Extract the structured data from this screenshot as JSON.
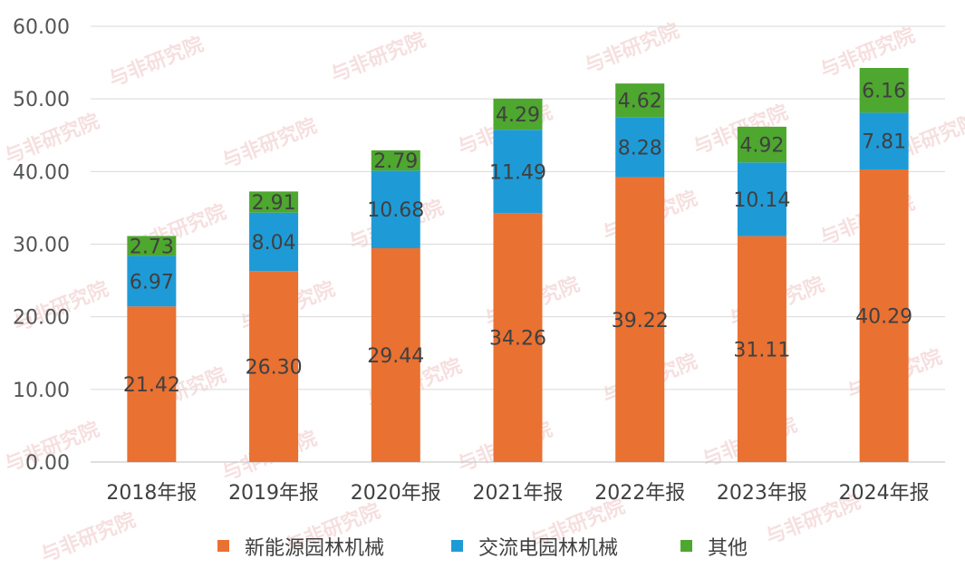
{
  "chart_data": {
    "type": "bar",
    "stacked": true,
    "categories": [
      "2018年报",
      "2019年报",
      "2020年报",
      "2021年报",
      "2022年报",
      "2023年报",
      "2024年报"
    ],
    "series": [
      {
        "name": "新能源园林机械",
        "color": "#E97132",
        "values": [
          21.42,
          26.3,
          29.44,
          34.26,
          39.22,
          31.11,
          40.29
        ],
        "labels": [
          "21.42",
          "26.30",
          "29.44",
          "34.26",
          "39.22",
          "31.11",
          "40.29"
        ]
      },
      {
        "name": "交流电园林机械",
        "color": "#1E9BD7",
        "values": [
          6.97,
          8.04,
          10.68,
          11.49,
          8.28,
          10.14,
          7.81
        ],
        "labels": [
          "6.97",
          "8.04",
          "10.68",
          "11.49",
          "8.28",
          "10.14",
          "7.81"
        ]
      },
      {
        "name": "其他",
        "color": "#4EA72E",
        "values": [
          2.73,
          2.91,
          2.79,
          4.29,
          4.62,
          4.92,
          6.16
        ],
        "labels": [
          "2.73",
          "2.91",
          "2.79",
          "4.29",
          "4.62",
          "4.92",
          "6.16"
        ]
      }
    ],
    "ylim": [
      0,
      60
    ],
    "yticks": [
      "0.00",
      "10.00",
      "20.00",
      "30.00",
      "40.00",
      "50.00",
      "60.00"
    ],
    "grid": true,
    "legend_position": "bottom",
    "title": "",
    "xlabel": "",
    "ylabel": ""
  },
  "watermark": {
    "text": "与非研究院",
    "color": "#e8a6a6"
  }
}
